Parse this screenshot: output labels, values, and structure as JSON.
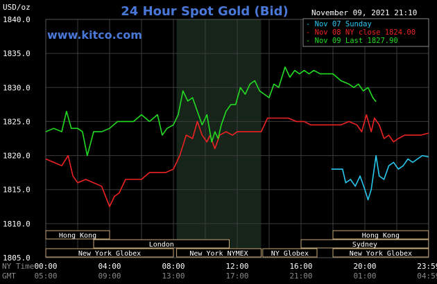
{
  "chart_data": {
    "type": "line",
    "title": "24 Hour Spot Gold (Bid)",
    "website": "www.kitco.com",
    "ylabel": "USD/oz",
    "timestamp": "November 09, 2021 21:10",
    "ylim": [
      1805,
      1840
    ],
    "yticks": [
      "1840.0",
      "1835.0",
      "1830.0",
      "1825.0",
      "1820.0",
      "1815.0",
      "1810.0",
      "1805.0"
    ],
    "xlim": [
      0,
      24
    ],
    "xticks_ny": [
      "00:00",
      "04:00",
      "08:00",
      "12:00",
      "16:00",
      "20:00",
      "23:59"
    ],
    "xticks_gmt": [
      "05:00",
      "09:00",
      "13:00",
      "17:00",
      "21:00",
      "01:00",
      "04:59"
    ],
    "xaxis_labels": {
      "ny": "NY Time",
      "gmt": "GMT"
    },
    "grid": true,
    "legend_position": "top-right",
    "colors": {
      "sunday": "#29c8f0",
      "ny_close": "#ee2222",
      "last": "#22dd22",
      "title": "#4a78d8",
      "grid": "#3c3c3c",
      "shade": "#17241a"
    },
    "series": [
      {
        "name": "Nov 07 Sunday",
        "color": "#29c8f0",
        "x": [
          17.9,
          18.6,
          18.8,
          19.1,
          19.4,
          19.7,
          20.0,
          20.2,
          20.4,
          20.7,
          20.9,
          21.2,
          21.5,
          21.8,
          22.1,
          22.4,
          22.7,
          23.0,
          23.3,
          23.6,
          23.99
        ],
        "y": [
          1818.0,
          1818.0,
          1816.0,
          1816.5,
          1815.5,
          1817.0,
          1815.0,
          1813.5,
          1815.0,
          1820.0,
          1817.0,
          1816.5,
          1818.5,
          1819.0,
          1818.0,
          1818.5,
          1819.5,
          1819.0,
          1819.5,
          1820.0,
          1819.8
        ]
      },
      {
        "name": "Nov 08 NY close 1824.00",
        "color": "#ee2222",
        "x": [
          0,
          0.5,
          1.0,
          1.4,
          1.7,
          2.0,
          2.5,
          3.0,
          3.5,
          4.0,
          4.3,
          4.6,
          5.0,
          5.5,
          6.0,
          6.5,
          7.0,
          7.5,
          8.0,
          8.4,
          8.8,
          9.2,
          9.5,
          9.8,
          10.1,
          10.3,
          10.6,
          10.9,
          11.3,
          11.7,
          12.0,
          12.5,
          13.0,
          13.5,
          13.9,
          14.3,
          14.7,
          15.2,
          15.7,
          16.2,
          16.6,
          17.0,
          17.5,
          18.0,
          18.5,
          19.0,
          19.5,
          19.8,
          20.1,
          20.4,
          20.6,
          20.9,
          21.2,
          21.5,
          21.8,
          22.1,
          22.5,
          23.0,
          23.5,
          23.99
        ],
        "y": [
          1819.5,
          1819.0,
          1818.5,
          1820.0,
          1817.0,
          1816.0,
          1816.5,
          1816.0,
          1815.5,
          1812.5,
          1814.0,
          1814.5,
          1816.5,
          1816.5,
          1816.5,
          1817.5,
          1817.5,
          1817.5,
          1818.0,
          1820.0,
          1823.0,
          1822.5,
          1825.0,
          1823.0,
          1822.0,
          1823.0,
          1821.0,
          1823.0,
          1823.5,
          1823.0,
          1823.5,
          1823.5,
          1823.5,
          1823.5,
          1825.5,
          1825.5,
          1825.5,
          1825.5,
          1825.0,
          1825.0,
          1824.5,
          1824.5,
          1824.5,
          1824.5,
          1824.5,
          1825.0,
          1824.5,
          1823.5,
          1826.0,
          1823.5,
          1825.5,
          1824.5,
          1822.5,
          1823.0,
          1822.0,
          1822.5,
          1823.0,
          1823.0,
          1823.0,
          1823.3
        ]
      },
      {
        "name": "Nov 09 Last 1827.90",
        "color": "#22dd22",
        "x": [
          0,
          0.5,
          1.0,
          1.3,
          1.6,
          2.0,
          2.3,
          2.6,
          3.0,
          3.5,
          4.0,
          4.5,
          5.0,
          5.5,
          6.0,
          6.5,
          7.0,
          7.3,
          7.6,
          8.0,
          8.3,
          8.6,
          8.9,
          9.2,
          9.5,
          9.8,
          10.1,
          10.4,
          10.6,
          10.8,
          11.0,
          11.3,
          11.6,
          11.9,
          12.2,
          12.5,
          12.8,
          13.1,
          13.4,
          13.7,
          14.0,
          14.3,
          14.6,
          15.0,
          15.3,
          15.6,
          15.9,
          16.2,
          16.5,
          16.8,
          17.2,
          17.6,
          18.0,
          18.5,
          19.0,
          19.3,
          19.6,
          19.9,
          20.2,
          20.5,
          20.7
        ],
        "y": [
          1823.5,
          1824.0,
          1823.5,
          1826.5,
          1824.0,
          1824.0,
          1823.5,
          1820.0,
          1823.5,
          1823.5,
          1824.0,
          1825.0,
          1825.0,
          1825.0,
          1826.0,
          1825.0,
          1826.0,
          1823.0,
          1824.0,
          1824.5,
          1826.0,
          1829.5,
          1828.0,
          1828.5,
          1826.5,
          1824.5,
          1826.0,
          1822.0,
          1823.5,
          1822.5,
          1824.5,
          1826.5,
          1827.5,
          1827.5,
          1830.0,
          1829.0,
          1830.5,
          1831.0,
          1829.5,
          1829.0,
          1828.5,
          1830.5,
          1830.0,
          1833.0,
          1831.5,
          1832.5,
          1832.0,
          1832.5,
          1832.0,
          1832.5,
          1832.0,
          1832.0,
          1832.0,
          1831.0,
          1830.5,
          1830.0,
          1830.5,
          1829.5,
          1830.0,
          1828.5,
          1827.9
        ]
      }
    ],
    "sessions": [
      {
        "label": "Hong Kong",
        "start": 0.0,
        "end": 4.0,
        "row": 1
      },
      {
        "label": "Hong Kong",
        "start": 18.0,
        "end": 23.99,
        "row": 1
      },
      {
        "label": "London",
        "start": 3.0,
        "end": 11.5,
        "row": 2
      },
      {
        "label": "Sydney",
        "start": 16.0,
        "end": 23.99,
        "row": 2
      },
      {
        "label": "New York Globex",
        "start": 0.0,
        "end": 8.0,
        "row": 3
      },
      {
        "label": "New York NYMEX",
        "start": 8.2,
        "end": 13.5,
        "row": 3
      },
      {
        "label": "NY Globex",
        "start": 13.6,
        "end": 17.0,
        "row": 3
      },
      {
        "label": "New York Globex",
        "start": 18.0,
        "end": 23.99,
        "row": 3
      }
    ],
    "shaded_range": [
      8.2,
      13.5
    ]
  }
}
